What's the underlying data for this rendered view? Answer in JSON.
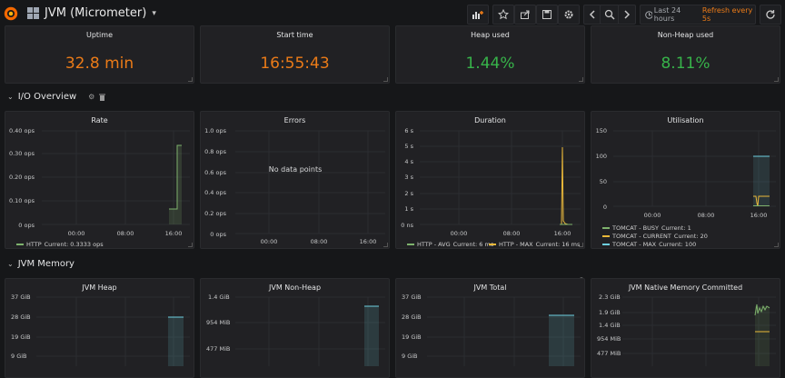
{
  "header": {
    "title": "JVM (Micrometer)",
    "time_range": "Last 24 hours",
    "refresh": "Refresh every 5s"
  },
  "stats": [
    {
      "title": "Uptime",
      "value": "32.8 min",
      "color": "#eb7b18"
    },
    {
      "title": "Start time",
      "value": "16:55:43",
      "color": "#eb7b18"
    },
    {
      "title": "Heap used",
      "value": "1.44%",
      "color": "#37b34a"
    },
    {
      "title": "Non-Heap used",
      "value": "8.11%",
      "color": "#37b34a"
    }
  ],
  "rows": {
    "io": "I/O Overview",
    "mem": "JVM Memory"
  },
  "panels": {
    "rate": {
      "title": "Rate",
      "legend": [
        {
          "label": "HTTP",
          "current": "Current: 0.3333 ops",
          "color": "#7eb26d"
        }
      ]
    },
    "errors": {
      "title": "Errors",
      "nodata": "No data points"
    },
    "duration": {
      "title": "Duration",
      "legend": [
        {
          "label": "HTTP - AVG",
          "current": "Current: 6 ms",
          "color": "#7eb26d"
        },
        {
          "label": "HTTP - MAX",
          "current": "Current: 16 ms",
          "color": "#eab839"
        }
      ]
    },
    "util": {
      "title": "Utilisation",
      "legend": [
        {
          "label": "TOMCAT - BUSY",
          "current": "Current: 1",
          "color": "#7eb26d"
        },
        {
          "label": "TOMCAT - CURRENT",
          "current": "Current: 20",
          "color": "#eab839"
        },
        {
          "label": "TOMCAT - MAX",
          "current": "Current: 100",
          "color": "#6ed0e0"
        }
      ]
    },
    "heap": {
      "title": "JVM Heap"
    },
    "nonheap": {
      "title": "JVM Non-Heap"
    },
    "total": {
      "title": "JVM Total"
    },
    "native": {
      "title": "JVM Native Memory Committed"
    }
  },
  "chart_data": [
    {
      "type": "area",
      "title": "Rate",
      "y_ticks": [
        "0.40 ops",
        "0.30 ops",
        "0.20 ops",
        "0.10 ops",
        "0 ops"
      ],
      "x_ticks": [
        "00:00",
        "08:00",
        "16:00"
      ],
      "ylim": [
        0,
        0.4
      ],
      "series": [
        {
          "name": "HTTP",
          "x": [
            "15:30",
            "16:00",
            "16:00",
            "16:30"
          ],
          "values": [
            0.0667,
            0.0667,
            0.3333,
            0.3333
          ]
        }
      ]
    },
    {
      "type": "line",
      "title": "Errors",
      "y_ticks": [
        "1.0 ops",
        "0.8 ops",
        "0.6 ops",
        "0.4 ops",
        "0.2 ops",
        "0 ops"
      ],
      "x_ticks": [
        "00:00",
        "08:00",
        "16:00"
      ],
      "ylim": [
        0,
        1
      ],
      "series": []
    },
    {
      "type": "line",
      "title": "Duration",
      "y_ticks": [
        "6 s",
        "5 s",
        "4 s",
        "3 s",
        "2 s",
        "1 s",
        "0 ns"
      ],
      "x_ticks": [
        "00:00",
        "08:00",
        "16:00"
      ],
      "ylim": [
        0,
        6
      ],
      "series": [
        {
          "name": "HTTP - AVG",
          "x": [
            "16:50",
            "17:00",
            "17:10",
            "17:30"
          ],
          "values": [
            0,
            0,
            0.006,
            0.006
          ]
        },
        {
          "name": "HTTP - MAX",
          "x": [
            "16:50",
            "17:00",
            "17:05",
            "17:10",
            "17:30"
          ],
          "values": [
            0,
            0,
            5,
            0.016,
            0.016
          ]
        }
      ]
    },
    {
      "type": "area",
      "title": "Utilisation",
      "y_ticks": [
        "150",
        "100",
        "50",
        "0"
      ],
      "x_ticks": [
        "00:00",
        "08:00",
        "16:00"
      ],
      "ylim": [
        0,
        150
      ],
      "series": [
        {
          "name": "TOMCAT - BUSY",
          "x": [
            "16:50",
            "17:30"
          ],
          "values": [
            1,
            1
          ]
        },
        {
          "name": "TOMCAT - CURRENT",
          "x": [
            "16:50",
            "17:00",
            "17:05",
            "17:10",
            "17:30"
          ],
          "values": [
            20,
            20,
            10,
            20,
            20
          ]
        },
        {
          "name": "TOMCAT - MAX",
          "x": [
            "16:50",
            "17:30"
          ],
          "values": [
            100,
            100
          ]
        }
      ]
    },
    {
      "type": "area",
      "title": "JVM Heap",
      "y_ticks": [
        "37 GiB",
        "28 GiB",
        "19 GiB",
        "9 GiB"
      ]
    },
    {
      "type": "area",
      "title": "JVM Non-Heap",
      "y_ticks": [
        "1.4 GiB",
        "954 MiB",
        "477 MiB"
      ]
    },
    {
      "type": "area",
      "title": "JVM Total",
      "y_ticks": [
        "37 GiB",
        "28 GiB",
        "19 GiB",
        "9 GiB"
      ]
    },
    {
      "type": "line",
      "title": "JVM Native Memory Committed",
      "y_ticks": [
        "2.3 GiB",
        "1.9 GiB",
        "1.4 GiB",
        "954 MiB",
        "477 MiB"
      ]
    }
  ]
}
